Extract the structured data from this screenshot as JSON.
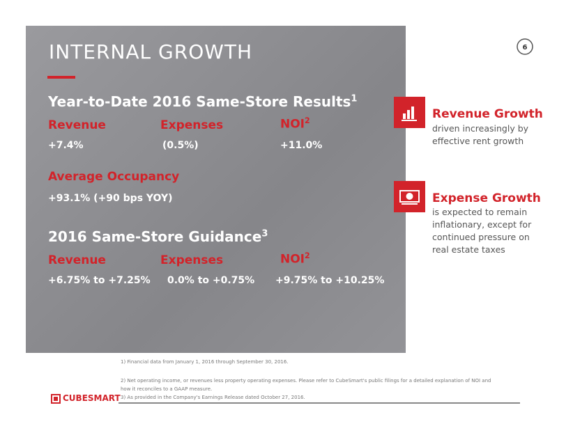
{
  "page_number": "6",
  "title": "INTERNAL GROWTH",
  "ytd": {
    "heading": "Year-to-Date 2016 Same-Store Results",
    "heading_sup": "1",
    "columns": [
      {
        "label": "Revenue",
        "value": "+7.4%"
      },
      {
        "label": "Expenses",
        "value": "(0.5%)"
      },
      {
        "label": "NOI",
        "label_sup": "2",
        "value": "+11.0%"
      }
    ]
  },
  "occupancy": {
    "label": "Average Occupancy",
    "value": "+93.1% (+90 bps YOY)"
  },
  "guidance": {
    "heading": "2016 Same-Store Guidance",
    "heading_sup": "3",
    "columns": [
      {
        "label": "Revenue",
        "value": "+6.75% to +7.25%"
      },
      {
        "label": "Expenses",
        "value": "0.0% to +0.75%"
      },
      {
        "label": "NOI",
        "label_sup": "2",
        "value": "+9.75% to +10.25%"
      }
    ]
  },
  "sidebar": [
    {
      "title": "Revenue Growth",
      "text": "driven increasingly by effective rent growth"
    },
    {
      "title": "Expense Growth",
      "text": "is expected to remain inflationary, except for continued pressure on real estate taxes"
    }
  ],
  "footnotes": [
    "1) Financial data from January 1, 2016 through September 30, 2016.",
    "2) Net operating income, or revenues less property operating expenses. Please refer to CubeSmart's public filings for a detailed explanation of NOI and how it reconciles to a GAAP measure.",
    "3) As provided in the Company's Earnings Release dated October 27, 2016."
  ],
  "logo": "CUBESMART"
}
